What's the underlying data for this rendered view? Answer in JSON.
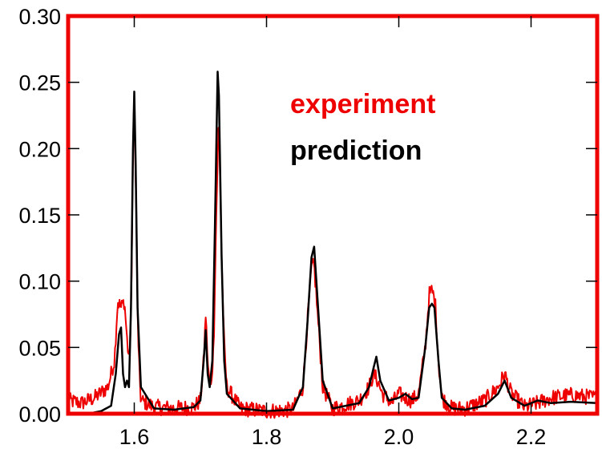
{
  "chart_data": {
    "type": "line",
    "title": "",
    "xlabel": "",
    "ylabel": "",
    "xlim": [
      1.5,
      2.3
    ],
    "ylim": [
      0.0,
      0.3
    ],
    "x_ticks": [
      1.6,
      1.8,
      2.0,
      2.2
    ],
    "x_tick_labels": [
      "1.6",
      "1.8",
      "2.0",
      "2.2"
    ],
    "y_ticks": [
      0.0,
      0.05,
      0.1,
      0.15,
      0.2,
      0.25,
      0.3
    ],
    "y_tick_labels": [
      "0.00",
      "0.05",
      "0.10",
      "0.15",
      "0.20",
      "0.25",
      "0.30"
    ],
    "grid": false,
    "legend_placement": "top-center-right",
    "frame_color": "#ee0000",
    "series": [
      {
        "name": "experiment",
        "color": "#ee0000",
        "noise_amplitude": 0.006,
        "x": [
          1.5,
          1.52,
          1.54,
          1.56,
          1.57,
          1.575,
          1.58,
          1.585,
          1.59,
          1.593,
          1.596,
          1.598,
          1.6,
          1.603,
          1.606,
          1.61,
          1.63,
          1.66,
          1.69,
          1.7,
          1.705,
          1.708,
          1.712,
          1.716,
          1.72,
          1.724,
          1.728,
          1.732,
          1.736,
          1.74,
          1.76,
          1.8,
          1.84,
          1.855,
          1.862,
          1.868,
          1.872,
          1.878,
          1.885,
          1.9,
          1.94,
          1.955,
          1.962,
          1.968,
          1.975,
          1.99,
          2.0,
          2.01,
          2.02,
          2.03,
          2.04,
          2.046,
          2.05,
          2.055,
          2.06,
          2.065,
          2.08,
          2.1,
          2.13,
          2.15,
          2.16,
          2.17,
          2.19,
          2.21,
          2.23,
          2.26,
          2.3
        ],
        "y": [
          0.01,
          0.008,
          0.012,
          0.02,
          0.04,
          0.085,
          0.08,
          0.085,
          0.05,
          0.04,
          0.1,
          0.2,
          0.24,
          0.15,
          0.05,
          0.01,
          0.005,
          0.004,
          0.005,
          0.01,
          0.04,
          0.075,
          0.03,
          0.02,
          0.05,
          0.15,
          0.225,
          0.12,
          0.05,
          0.02,
          0.004,
          0.002,
          0.003,
          0.02,
          0.07,
          0.11,
          0.112,
          0.07,
          0.02,
          0.004,
          0.01,
          0.02,
          0.03,
          0.025,
          0.015,
          0.008,
          0.015,
          0.012,
          0.01,
          0.015,
          0.05,
          0.09,
          0.093,
          0.085,
          0.04,
          0.012,
          0.004,
          0.004,
          0.01,
          0.02,
          0.03,
          0.015,
          0.005,
          0.008,
          0.012,
          0.014,
          0.012
        ]
      },
      {
        "name": "prediction",
        "color": "#000000",
        "noise_amplitude": 0,
        "x": [
          1.53,
          1.55,
          1.565,
          1.572,
          1.577,
          1.58,
          1.583,
          1.586,
          1.589,
          1.592,
          1.595,
          1.598,
          1.6,
          1.602,
          1.605,
          1.61,
          1.63,
          1.66,
          1.69,
          1.7,
          1.705,
          1.708,
          1.711,
          1.714,
          1.718,
          1.722,
          1.726,
          1.728,
          1.732,
          1.736,
          1.74,
          1.76,
          1.8,
          1.84,
          1.855,
          1.862,
          1.868,
          1.872,
          1.878,
          1.885,
          1.9,
          1.94,
          1.955,
          1.962,
          1.966,
          1.972,
          1.985,
          2.0,
          2.01,
          2.02,
          2.03,
          2.04,
          2.046,
          2.05,
          2.054,
          2.06,
          2.065,
          2.08,
          2.1,
          2.13,
          2.15,
          2.16,
          2.17,
          2.19,
          2.21,
          2.23,
          2.26,
          2.3
        ],
        "y": [
          0.0,
          0.002,
          0.006,
          0.03,
          0.06,
          0.065,
          0.03,
          0.02,
          0.025,
          0.02,
          0.08,
          0.2,
          0.243,
          0.19,
          0.08,
          0.02,
          0.004,
          0.003,
          0.005,
          0.01,
          0.04,
          0.063,
          0.03,
          0.02,
          0.04,
          0.14,
          0.258,
          0.24,
          0.12,
          0.04,
          0.015,
          0.004,
          0.002,
          0.003,
          0.02,
          0.07,
          0.118,
          0.126,
          0.08,
          0.025,
          0.004,
          0.008,
          0.02,
          0.035,
          0.043,
          0.025,
          0.01,
          0.012,
          0.015,
          0.011,
          0.012,
          0.05,
          0.08,
          0.083,
          0.08,
          0.04,
          0.012,
          0.004,
          0.003,
          0.006,
          0.015,
          0.025,
          0.012,
          0.006,
          0.01,
          0.008,
          0.009,
          0.008
        ]
      }
    ]
  }
}
